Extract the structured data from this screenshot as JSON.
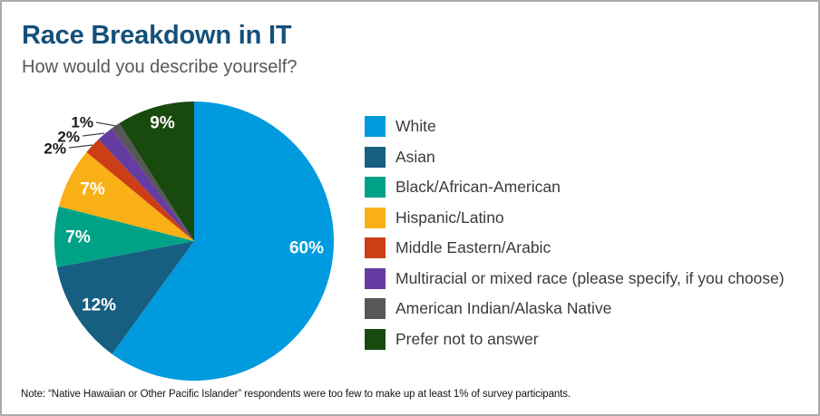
{
  "header": {
    "title": "Race Breakdown in IT",
    "subtitle": "How would you describe yourself?"
  },
  "chart_data": {
    "type": "pie",
    "title": "Race Breakdown in IT",
    "subtitle": "How would you describe yourself?",
    "start_angle_deg": 0,
    "direction": "clockwise",
    "unit": "%",
    "categories": [
      "White",
      "Asian",
      "Black/African-American",
      "Hispanic/Latino",
      "Middle Eastern/Arabic",
      "Multiracial or mixed race (please specify, if you choose)",
      "American Indian/Alaska Native",
      "Prefer not to answer"
    ],
    "values": [
      60,
      12,
      7,
      7,
      2,
      2,
      1,
      9
    ],
    "slice_labels": [
      "60%",
      "12%",
      "7%",
      "7%",
      "2%",
      "2%",
      "1%",
      "9%"
    ],
    "colors": [
      "#009ade",
      "#175f80",
      "#00a287",
      "#f9b017",
      "#cc3e15",
      "#653ca1",
      "#575757",
      "#194a0d"
    ],
    "legend_position": "right"
  },
  "note": "Note: “Native Hawaiian or Other Pacific Islander” respondents were too few to make up at least 1% of survey participants.",
  "style_colors": {
    "title": "#14507a",
    "subtitle": "#56575a",
    "inside_label": "#ffffff",
    "outside_label": "#1a1a1a"
  }
}
